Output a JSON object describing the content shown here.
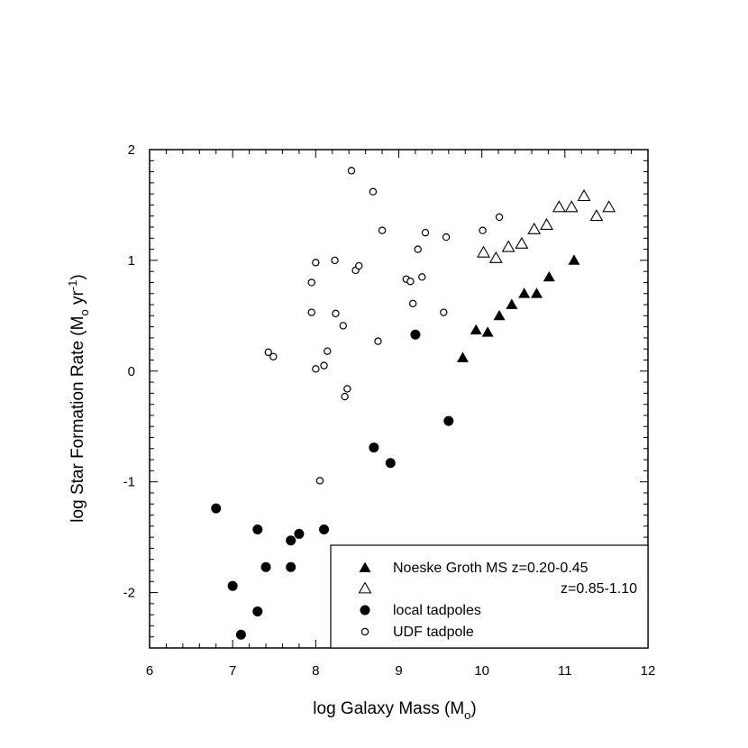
{
  "chart_data": {
    "type": "scatter",
    "title": "",
    "xlabel": "log Galaxy Mass (M",
    "xlabel_sub": "o",
    "xlabel_end": ")",
    "ylabel": "log Star Formation Rate (M",
    "ylabel_sub": "o",
    "ylabel_mid": " yr",
    "ylabel_sup": "-1",
    "ylabel_end": ")",
    "xlim": [
      6,
      12
    ],
    "ylim": [
      -2.5,
      2
    ],
    "x_ticks": [
      "6",
      "7",
      "8",
      "9",
      "10",
      "11",
      "12"
    ],
    "y_ticks": [
      "-2",
      "-1",
      "0",
      "1",
      "2"
    ],
    "legend_position": "bottom-right",
    "series": [
      {
        "name": "Noeske Groth MS z=0.20-0.45",
        "marker": "triangle-filled",
        "points": [
          [
            9.77,
            0.12
          ],
          [
            9.93,
            0.37
          ],
          [
            10.07,
            0.35
          ],
          [
            10.21,
            0.5
          ],
          [
            10.36,
            0.6
          ],
          [
            10.51,
            0.7
          ],
          [
            10.66,
            0.7
          ],
          [
            10.81,
            0.85
          ],
          [
            11.11,
            1.0
          ]
        ]
      },
      {
        "name": "z=0.85-1.10",
        "marker": "triangle-open",
        "points": [
          [
            10.02,
            1.07
          ],
          [
            10.17,
            1.02
          ],
          [
            10.32,
            1.12
          ],
          [
            10.48,
            1.15
          ],
          [
            10.63,
            1.28
          ],
          [
            10.78,
            1.32
          ],
          [
            10.93,
            1.48
          ],
          [
            11.08,
            1.48
          ],
          [
            11.23,
            1.58
          ],
          [
            11.38,
            1.4
          ],
          [
            11.53,
            1.48
          ]
        ]
      },
      {
        "name": "local tadpoles",
        "marker": "circle-filled",
        "points": [
          [
            6.8,
            -1.24
          ],
          [
            7.0,
            -1.94
          ],
          [
            7.1,
            -2.38
          ],
          [
            7.3,
            -1.43
          ],
          [
            7.3,
            -2.17
          ],
          [
            7.4,
            -1.77
          ],
          [
            7.7,
            -1.53
          ],
          [
            7.7,
            -1.77
          ],
          [
            7.8,
            -1.47
          ],
          [
            8.1,
            -1.43
          ],
          [
            8.7,
            -0.69
          ],
          [
            8.9,
            -0.83
          ],
          [
            9.2,
            0.33
          ],
          [
            9.6,
            -0.45
          ]
        ]
      },
      {
        "name": "UDF tadpole",
        "marker": "circle-open",
        "points": [
          [
            7.43,
            0.17
          ],
          [
            7.49,
            0.13
          ],
          [
            7.95,
            0.8
          ],
          [
            7.95,
            0.53
          ],
          [
            8.0,
            0.98
          ],
          [
            8.0,
            0.02
          ],
          [
            8.05,
            -0.99
          ],
          [
            8.1,
            0.05
          ],
          [
            8.14,
            0.18
          ],
          [
            8.23,
            1.0
          ],
          [
            8.24,
            0.52
          ],
          [
            8.33,
            0.41
          ],
          [
            8.35,
            -0.23
          ],
          [
            8.38,
            -0.16
          ],
          [
            8.43,
            1.81
          ],
          [
            8.48,
            0.91
          ],
          [
            8.52,
            0.95
          ],
          [
            8.69,
            1.62
          ],
          [
            8.75,
            0.27
          ],
          [
            8.8,
            1.27
          ],
          [
            9.09,
            0.83
          ],
          [
            9.14,
            0.81
          ],
          [
            9.17,
            0.61
          ],
          [
            9.23,
            1.1
          ],
          [
            9.28,
            0.85
          ],
          [
            9.32,
            1.25
          ],
          [
            9.54,
            0.53
          ],
          [
            9.57,
            1.21
          ],
          [
            10.01,
            1.27
          ],
          [
            10.21,
            1.39
          ]
        ]
      }
    ]
  }
}
